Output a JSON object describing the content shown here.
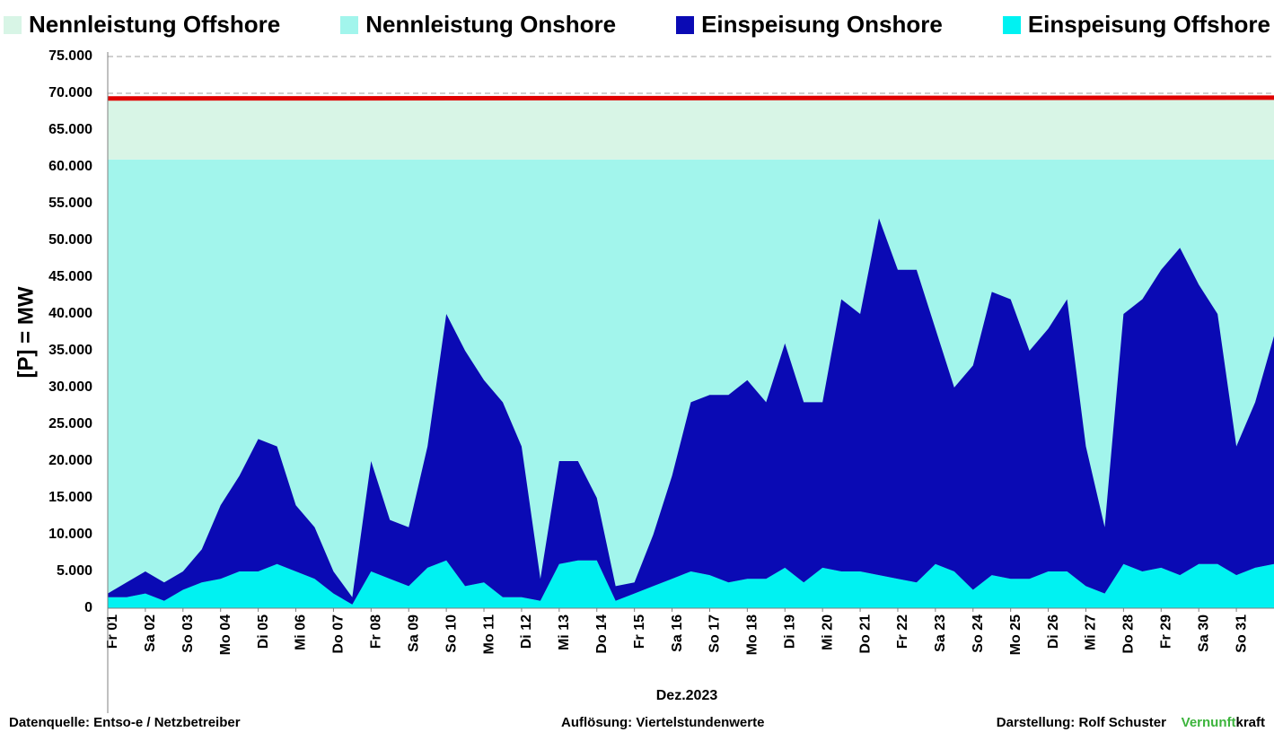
{
  "chart_data": {
    "type": "stacked-area",
    "y_label": "[P] = MW",
    "x_label": "Dez.2023",
    "xlim": [
      0,
      31
    ],
    "ylim": [
      0,
      75000
    ],
    "yticks": [
      0,
      {
        "value": 5000,
        "label": "5.000"
      },
      {
        "value": 10000,
        "label": "10.000"
      },
      {
        "value": 15000,
        "label": "15.000"
      },
      {
        "value": 20000,
        "label": "20.000"
      },
      {
        "value": 25000,
        "label": "25.000"
      },
      {
        "value": 30000,
        "label": "30.000"
      },
      {
        "value": 35000,
        "label": "35.000"
      },
      {
        "value": 40000,
        "label": "40.000"
      },
      {
        "value": 45000,
        "label": "45.000"
      },
      {
        "value": 50000,
        "label": "50.000"
      },
      {
        "value": 55000,
        "label": "55.000"
      },
      {
        "value": 60000,
        "label": "60.000"
      },
      {
        "value": 65000,
        "label": "65.000"
      },
      {
        "value": 70000,
        "label": "70.000"
      },
      {
        "value": 75000,
        "label": "75.000"
      }
    ],
    "xticks": [
      {
        "value": 0,
        "label": "Fr 01"
      },
      {
        "value": 1,
        "label": "Sa 02"
      },
      {
        "value": 2,
        "label": "So 03"
      },
      {
        "value": 3,
        "label": "Mo 04"
      },
      {
        "value": 4,
        "label": "Di 05"
      },
      {
        "value": 5,
        "label": "Mi 06"
      },
      {
        "value": 6,
        "label": "Do 07"
      },
      {
        "value": 7,
        "label": "Fr 08"
      },
      {
        "value": 8,
        "label": "Sa 09"
      },
      {
        "value": 9,
        "label": "So 10"
      },
      {
        "value": 10,
        "label": "Mo 11"
      },
      {
        "value": 11,
        "label": "Di 12"
      },
      {
        "value": 12,
        "label": "Mi 13"
      },
      {
        "value": 13,
        "label": "Do 14"
      },
      {
        "value": 14,
        "label": "Fr 15"
      },
      {
        "value": 15,
        "label": "Sa 16"
      },
      {
        "value": 16,
        "label": "So 17"
      },
      {
        "value": 17,
        "label": "Mo 18"
      },
      {
        "value": 18,
        "label": "Di 19"
      },
      {
        "value": 19,
        "label": "Mi 20"
      },
      {
        "value": 20,
        "label": "Do 21"
      },
      {
        "value": 21,
        "label": "Fr 22"
      },
      {
        "value": 22,
        "label": "Sa 23"
      },
      {
        "value": 23,
        "label": "So 24"
      },
      {
        "value": 24,
        "label": "Mo 25"
      },
      {
        "value": 25,
        "label": "Di 26"
      },
      {
        "value": 26,
        "label": "Mi 27"
      },
      {
        "value": 27,
        "label": "Do 28"
      },
      {
        "value": 28,
        "label": "Fr 29"
      },
      {
        "value": 29,
        "label": "Sa 30"
      },
      {
        "value": 30,
        "label": "So 31"
      }
    ],
    "grid": true,
    "legend": "top",
    "stack_order": [
      [
        1,
        0
      ],
      [
        3,
        2
      ]
    ],
    "capacity_line_color": "#e00000",
    "series": [
      {
        "name": "Nennleistung Offshore",
        "color": "#d8f5e6",
        "x": [
          0,
          31
        ],
        "values": [
          8300,
          8400
        ]
      },
      {
        "name": "Nennleistung Onshore",
        "color": "#a2f5ec",
        "x": [
          0,
          31
        ],
        "values": [
          61000,
          61000
        ]
      },
      {
        "name": "Einspeisung Onshore",
        "color": "#0a0ab4",
        "x": [
          0,
          0.5,
          1,
          1.5,
          2,
          2.5,
          3,
          3.5,
          4,
          4.5,
          5,
          5.5,
          6,
          6.5,
          7,
          7.5,
          8,
          8.5,
          9,
          9.5,
          10,
          10.5,
          11,
          11.5,
          12,
          12.5,
          13,
          13.5,
          14,
          14.5,
          15,
          15.5,
          16,
          16.5,
          17,
          17.5,
          18,
          18.5,
          19,
          19.5,
          20,
          20.5,
          21,
          21.5,
          22,
          22.5,
          23,
          23.5,
          24,
          24.5,
          25,
          25.5,
          26,
          26.5,
          27,
          27.5,
          28,
          28.5,
          29,
          29.5,
          30,
          30.5,
          31
        ],
        "values": [
          500,
          2000,
          3000,
          2500,
          2500,
          4500,
          10000,
          13000,
          18000,
          16000,
          9000,
          7000,
          3000,
          1000,
          15000,
          8000,
          8000,
          16500,
          33500,
          32000,
          27500,
          26500,
          20500,
          3000,
          14000,
          13500,
          8500,
          2000,
          1500,
          7000,
          14000,
          23000,
          24500,
          25500,
          27000,
          24000,
          30500,
          24500,
          22500,
          37000,
          35000,
          48500,
          42000,
          42500,
          32000,
          25000,
          30500,
          38500,
          38000,
          31000,
          33000,
          37000,
          19000,
          9000,
          34000,
          37000,
          40500,
          44500,
          38000,
          34000,
          17500,
          22500,
          31000
        ]
      },
      {
        "name": "Einspeisung Offshore",
        "color": "#00f2f2",
        "x": [
          0,
          0.5,
          1,
          1.5,
          2,
          2.5,
          3,
          3.5,
          4,
          4.5,
          5,
          5.5,
          6,
          6.5,
          7,
          7.5,
          8,
          8.5,
          9,
          9.5,
          10,
          10.5,
          11,
          11.5,
          12,
          12.5,
          13,
          13.5,
          14,
          14.5,
          15,
          15.5,
          16,
          16.5,
          17,
          17.5,
          18,
          18.5,
          19,
          19.5,
          20,
          20.5,
          21,
          21.5,
          22,
          22.5,
          23,
          23.5,
          24,
          24.5,
          25,
          25.5,
          26,
          26.5,
          27,
          27.5,
          28,
          28.5,
          29,
          29.5,
          30,
          30.5,
          31
        ],
        "values": [
          1500,
          1500,
          2000,
          1000,
          2500,
          3500,
          4000,
          5000,
          5000,
          6000,
          5000,
          4000,
          2000,
          500,
          5000,
          4000,
          3000,
          5500,
          6500,
          3000,
          3500,
          1500,
          1500,
          1000,
          6000,
          6500,
          6500,
          1000,
          2000,
          3000,
          4000,
          5000,
          4500,
          3500,
          4000,
          4000,
          5500,
          3500,
          5500,
          5000,
          5000,
          4500,
          4000,
          3500,
          6000,
          5000,
          2500,
          4500,
          4000,
          4000,
          5000,
          5000,
          3000,
          2000,
          6000,
          5000,
          5500,
          4500,
          6000,
          6000,
          4500,
          5500,
          6000
        ]
      }
    ]
  },
  "footer": {
    "source": "Datenquelle:  Entso-e  / Netzbetreiber",
    "resolution": "Auflösung: Viertelstundenwerte",
    "author": "Darstellung:  Rolf Schuster",
    "brand_a": "Vernunft",
    "brand_b": "kraft"
  }
}
